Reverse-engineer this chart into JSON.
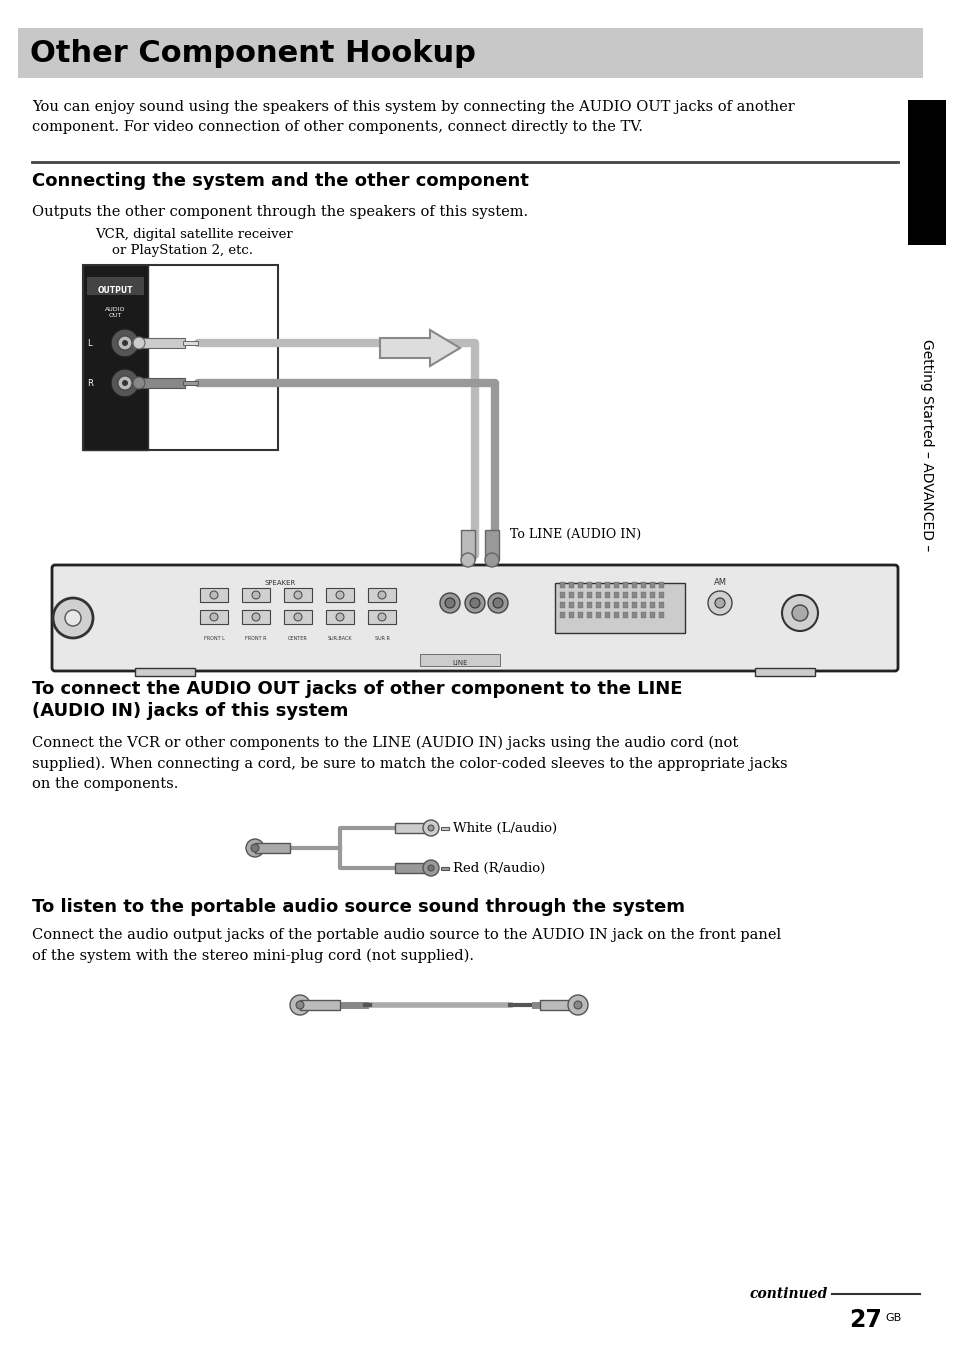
{
  "page_bg": "#ffffff",
  "header_bg": "#c8c8c8",
  "header_text": "Other Component Hookup",
  "header_text_color": "#000000",
  "header_font_size": 22,
  "sidebar_bg": "#000000",
  "sidebar_text": "Getting Started – ADVANCED –",
  "sidebar_text_color": "#ffffff",
  "sidebar_font_size": 10,
  "body_text_color": "#000000",
  "body_font_size": 10.5,
  "intro_text": "You can enjoy sound using the speakers of this system by connecting the AUDIO OUT jacks of another\ncomponent. For video connection of other components, connect directly to the TV.",
  "section1_title": "Connecting the system and the other component",
  "section1_body": "Outputs the other component through the speakers of this system.",
  "vcr_label_line1": "VCR, digital satellite receiver",
  "vcr_label_line2": "    or PlayStation 2, etc.",
  "line_audio_label": "To LINE (AUDIO IN)",
  "section2_title_line1": "To connect the AUDIO OUT jacks of other component to the LINE",
  "section2_title_line2": "(AUDIO IN) jacks of this system",
  "section2_body": "Connect the VCR or other components to the LINE (AUDIO IN) jacks using the audio cord (not\nsupplied). When connecting a cord, be sure to match the color-coded sleeves to the appropriate jacks\non the components.",
  "white_label": "White (L/audio)",
  "red_label": "Red (R/audio)",
  "section3_title": "To listen to the portable audio source sound through the system",
  "section3_body": "Connect the audio output jacks of the portable audio source to the AUDIO IN jack on the front panel\nof the system with the stereo mini-plug cord (not supplied).",
  "footer_continued": "continued",
  "footer_page": "27",
  "footer_gb": "GB",
  "cable_color": "#aaaaaa",
  "connector_color": "#bbbbbb",
  "connector_dark": "#888888",
  "device_color": "#e0e0e0",
  "device_edge": "#333333"
}
